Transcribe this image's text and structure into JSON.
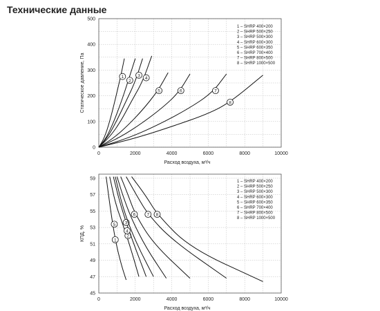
{
  "page_title": "Технические данные",
  "chart_data": [
    {
      "type": "line",
      "xlabel": "Расход воздуха, м³/ч",
      "ylabel": "Статическое давление, Па",
      "xlim": [
        0,
        10000
      ],
      "ylim": [
        0,
        500
      ],
      "x_ticks": [
        "0",
        "2000",
        "4000",
        "6000",
        "8000",
        "10000"
      ],
      "y_ticks": [
        "0",
        "100",
        "200",
        "300",
        "400",
        "500"
      ],
      "grid": true,
      "legend_position": "top-right",
      "legend": [
        "1 – SHRP 400×200",
        "2 – SHRP 500×250",
        "3 – SHRP 500×300",
        "4 – SHRP 600×300",
        "5 – SHRP 600×350",
        "6 – SHRP 700×400",
        "7 – SHRP 800×500",
        "8 – SHRP 1000×500"
      ],
      "series": [
        {
          "label": "1",
          "marker": [
            1300,
            275
          ],
          "points": [
            [
              0,
              0
            ],
            [
              300,
              35
            ],
            [
              600,
              100
            ],
            [
              900,
              185
            ],
            [
              1200,
              275
            ],
            [
              1400,
              345
            ]
          ]
        },
        {
          "label": "2",
          "marker": [
            1700,
            260
          ],
          "points": [
            [
              0,
              0
            ],
            [
              400,
              35
            ],
            [
              800,
              95
            ],
            [
              1200,
              170
            ],
            [
              1600,
              255
            ],
            [
              2000,
              345
            ]
          ]
        },
        {
          "label": "3",
          "marker": [
            2200,
            280
          ],
          "points": [
            [
              0,
              0
            ],
            [
              500,
              40
            ],
            [
              1000,
              105
            ],
            [
              1500,
              180
            ],
            [
              2000,
              255
            ],
            [
              2400,
              345
            ]
          ]
        },
        {
          "label": "4",
          "marker": [
            2600,
            270
          ],
          "points": [
            [
              0,
              0
            ],
            [
              600,
              40
            ],
            [
              1200,
              100
            ],
            [
              1800,
              180
            ],
            [
              2400,
              255
            ],
            [
              2900,
              355
            ]
          ]
        },
        {
          "label": "5",
          "marker": [
            3300,
            220
          ],
          "points": [
            [
              0,
              0
            ],
            [
              800,
              35
            ],
            [
              1600,
              85
            ],
            [
              2400,
              145
            ],
            [
              3200,
              215
            ],
            [
              3800,
              290
            ]
          ]
        },
        {
          "label": "6",
          "marker": [
            4500,
            220
          ],
          "points": [
            [
              0,
              0
            ],
            [
              1200,
              40
            ],
            [
              2400,
              95
            ],
            [
              3600,
              160
            ],
            [
              4400,
              215
            ],
            [
              5000,
              285
            ]
          ]
        },
        {
          "label": "7",
          "marker": [
            6400,
            220
          ],
          "points": [
            [
              0,
              0
            ],
            [
              1600,
              35
            ],
            [
              3200,
              85
            ],
            [
              4800,
              145
            ],
            [
              6200,
              210
            ],
            [
              7000,
              285
            ]
          ]
        },
        {
          "label": "8",
          "marker": [
            7200,
            175
          ],
          "points": [
            [
              0,
              0
            ],
            [
              2000,
              35
            ],
            [
              4000,
              80
            ],
            [
              6000,
              130
            ],
            [
              7200,
              175
            ],
            [
              9000,
              280
            ]
          ]
        }
      ]
    },
    {
      "type": "line",
      "xlabel": "Расход воздуха, м³/ч",
      "ylabel": "КПД, %",
      "xlim": [
        0,
        10000
      ],
      "ylim": [
        45,
        59.5
      ],
      "x_ticks": [
        "0",
        "2000",
        "4000",
        "6000",
        "8000",
        "10000"
      ],
      "y_ticks": [
        "45",
        "47",
        "49",
        "51",
        "53",
        "55",
        "57",
        "59"
      ],
      "grid": true,
      "legend_position": "top-right",
      "legend": [
        "1 – SHRP 400×200",
        "2 – SHRP 500×250",
        "3 – SHRP 500×300",
        "4 – SHRP 600×300",
        "5 – SHRP 600×350",
        "6 – SHRP 700×400",
        "7 – SHRP 800×500",
        "8 – SHRP 1000×500"
      ],
      "series": [
        {
          "label": "1",
          "marker": [
            900,
            51.5
          ],
          "points": [
            [
              400,
              59.2
            ],
            [
              650,
              55
            ],
            [
              900,
              51.5
            ],
            [
              1200,
              48.7
            ],
            [
              1500,
              46.6
            ]
          ]
        },
        {
          "label": "2",
          "marker": [
            1600,
            52
          ],
          "points": [
            [
              600,
              59.2
            ],
            [
              900,
              56
            ],
            [
              1300,
              53.5
            ],
            [
              1700,
              50.8
            ],
            [
              2200,
              47
            ]
          ]
        },
        {
          "label": "3",
          "marker": [
            1500,
            53.6
          ],
          "points": [
            [
              800,
              59.2
            ],
            [
              1100,
              56.5
            ],
            [
              1500,
              53.6
            ],
            [
              2000,
              50.5
            ],
            [
              2600,
              47
            ]
          ]
        },
        {
          "label": "4",
          "marker": [
            1550,
            52.6
          ],
          "points": [
            [
              900,
              59.2
            ],
            [
              1250,
              56
            ],
            [
              1700,
              53
            ],
            [
              2300,
              50
            ],
            [
              3000,
              47
            ]
          ]
        },
        {
          "label": "5",
          "marker": [
            850,
            53.4
          ],
          "points": [
            [
              1000,
              59.2
            ],
            [
              1300,
              57
            ],
            [
              1800,
              54
            ],
            [
              2600,
              50.5
            ],
            [
              3700,
              46.8
            ]
          ]
        },
        {
          "label": "6",
          "marker": [
            1950,
            54.6
          ],
          "points": [
            [
              1200,
              59.2
            ],
            [
              1600,
              57
            ],
            [
              2000,
              54.6
            ],
            [
              3000,
              51
            ],
            [
              5000,
              46.8
            ]
          ]
        },
        {
          "label": "7",
          "marker": [
            2700,
            54.6
          ],
          "points": [
            [
              1500,
              59.2
            ],
            [
              2100,
              56.8
            ],
            [
              2700,
              54.6
            ],
            [
              4000,
              51.5
            ],
            [
              7000,
              46.8
            ]
          ]
        },
        {
          "label": "8",
          "marker": [
            3200,
            54.6
          ],
          "points": [
            [
              1800,
              59.2
            ],
            [
              2600,
              56.8
            ],
            [
              3200,
              54.6
            ],
            [
              5000,
              50.5
            ],
            [
              9000,
              46.4
            ]
          ]
        }
      ]
    }
  ]
}
